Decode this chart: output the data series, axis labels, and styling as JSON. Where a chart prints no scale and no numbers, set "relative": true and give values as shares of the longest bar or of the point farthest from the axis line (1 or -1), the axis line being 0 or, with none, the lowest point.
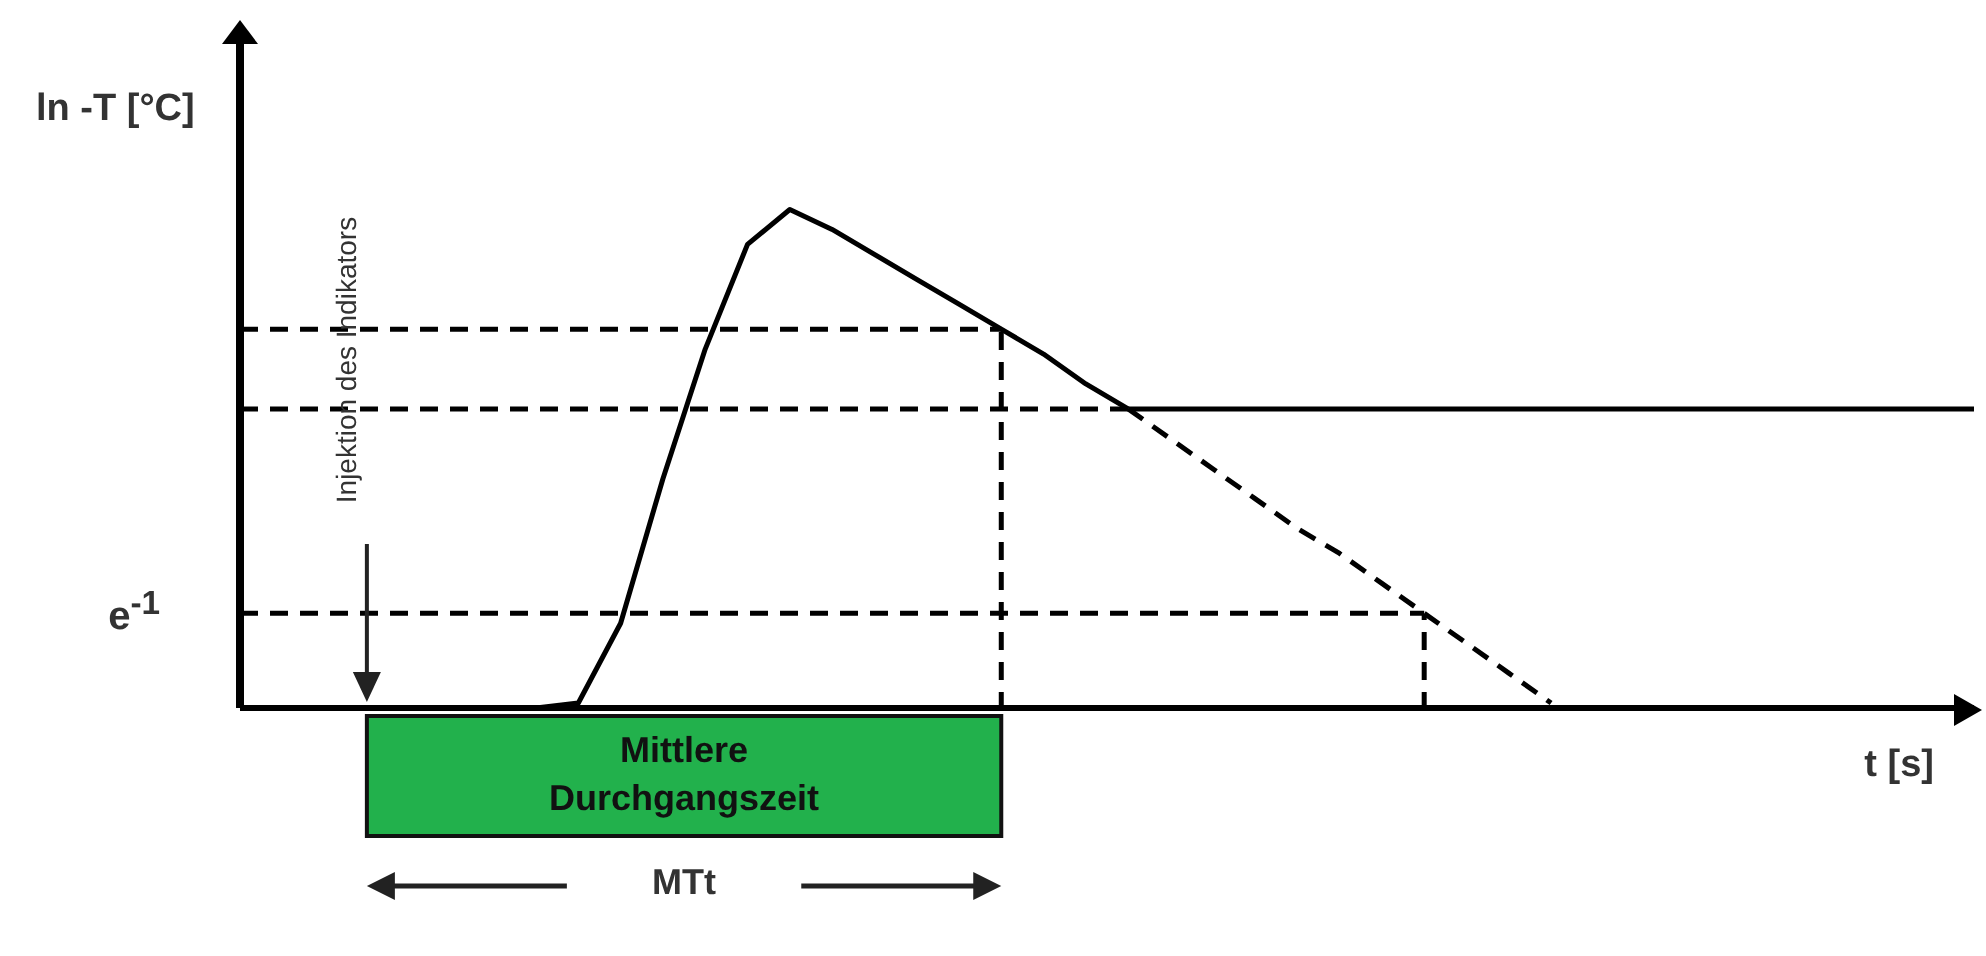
{
  "chart_data": {
    "type": "line",
    "relative": true,
    "xlabel": "t [s]",
    "ylabel": "ln -T [°C]",
    "marker": "none",
    "categories": [
      null,
      null,
      null,
      null,
      null,
      null,
      null,
      null,
      null,
      null,
      null,
      null,
      null,
      null,
      null,
      null,
      null,
      null,
      null,
      null,
      null,
      null,
      null,
      null,
      null,
      null,
      null,
      null,
      null,
      null,
      null,
      null,
      null,
      null,
      null,
      null,
      null,
      null,
      null,
      null,
      null,
      null
    ],
    "series": [
      {
        "values": [
          null,
          null,
          null,
          0,
          0,
          0,
          0,
          0,
          0.01,
          0.17,
          0.46,
          0.72,
          0.93,
          1,
          0.96,
          0.91,
          0.86,
          0.81,
          0.76,
          0.71,
          0.65,
          0.6,
          null,
          null,
          null,
          null,
          null,
          null,
          null,
          null,
          null,
          null,
          null,
          null,
          null,
          null,
          null,
          null,
          null,
          null,
          null,
          null
        ],
        "line_style": "solid",
        "color": "#000000"
      },
      {
        "values": [
          null,
          null,
          null,
          null,
          null,
          null,
          null,
          null,
          null,
          null,
          null,
          null,
          null,
          null,
          null,
          null,
          null,
          null,
          null,
          null,
          null,
          0.6,
          0.54,
          0.48,
          0.42,
          0.36,
          0.31,
          0.25,
          0.19,
          0.13,
          0.07,
          0.01,
          null,
          null,
          null,
          null,
          null,
          null,
          null,
          null,
          null,
          null
        ],
        "line_style": "dashed",
        "color": "#000000"
      },
      {
        "values": [
          null,
          null,
          null,
          null,
          null,
          null,
          null,
          null,
          null,
          null,
          null,
          null,
          null,
          null,
          null,
          null,
          null,
          null,
          null,
          null,
          null,
          0.6,
          0.6,
          0.6,
          0.6,
          0.6,
          0.6,
          0.6,
          0.6,
          0.6,
          0.6,
          0.6,
          0.6,
          0.6,
          0.6,
          0.6,
          0.6,
          0.6,
          0.6,
          0.6,
          0.6,
          0.6
        ],
        "line_style": "solid",
        "color": "#000000"
      },
      {
        "values": [
          0.76,
          0.76,
          0.76,
          0.76,
          0.76,
          0.76,
          0.76,
          0.76,
          0.76,
          0.76,
          0.76,
          0.76,
          0.76,
          0.76,
          0.76,
          0.76,
          0.76,
          0.76,
          0.76,
          null,
          null,
          null,
          null,
          null,
          null,
          null,
          null,
          null,
          null,
          null,
          null,
          null,
          null,
          null,
          null,
          null,
          null,
          null,
          null,
          null,
          null,
          null
        ],
        "line_style": "dashed",
        "color": "#000000"
      },
      {
        "values": [
          0.6,
          0.6,
          0.6,
          0.6,
          0.6,
          0.6,
          0.6,
          0.6,
          0.6,
          0.6,
          0.6,
          0.6,
          0.6,
          0.6,
          0.6,
          0.6,
          0.6,
          0.6,
          0.6,
          0.6,
          0.6,
          0.6,
          null,
          null,
          null,
          null,
          null,
          null,
          null,
          null,
          null,
          null,
          null,
          null,
          null,
          null,
          null,
          null,
          null,
          null,
          null,
          null
        ],
        "line_style": "dashed",
        "color": "#000000"
      },
      {
        "name": "e$^{-1}$",
        "values": [
          0.19,
          0.19,
          0.19,
          0.19,
          0.19,
          0.19,
          0.19,
          0.19,
          0.19,
          0.19,
          0.19,
          0.19,
          0.19,
          0.19,
          0.19,
          0.19,
          0.19,
          0.19,
          0.19,
          0.19,
          0.19,
          0.19,
          0.19,
          0.19,
          0.19,
          0.19,
          0.19,
          0.19,
          0.19,
          null,
          null,
          null,
          null,
          null,
          null,
          null,
          null,
          null,
          null,
          null,
          null,
          null
        ],
        "line_style": "dashed",
        "color": "#000000"
      }
    ],
    "annotations": [
      "Injektion des Indikators",
      "Mittlere Durchgangszeit",
      "MTt"
    ]
  }
}
